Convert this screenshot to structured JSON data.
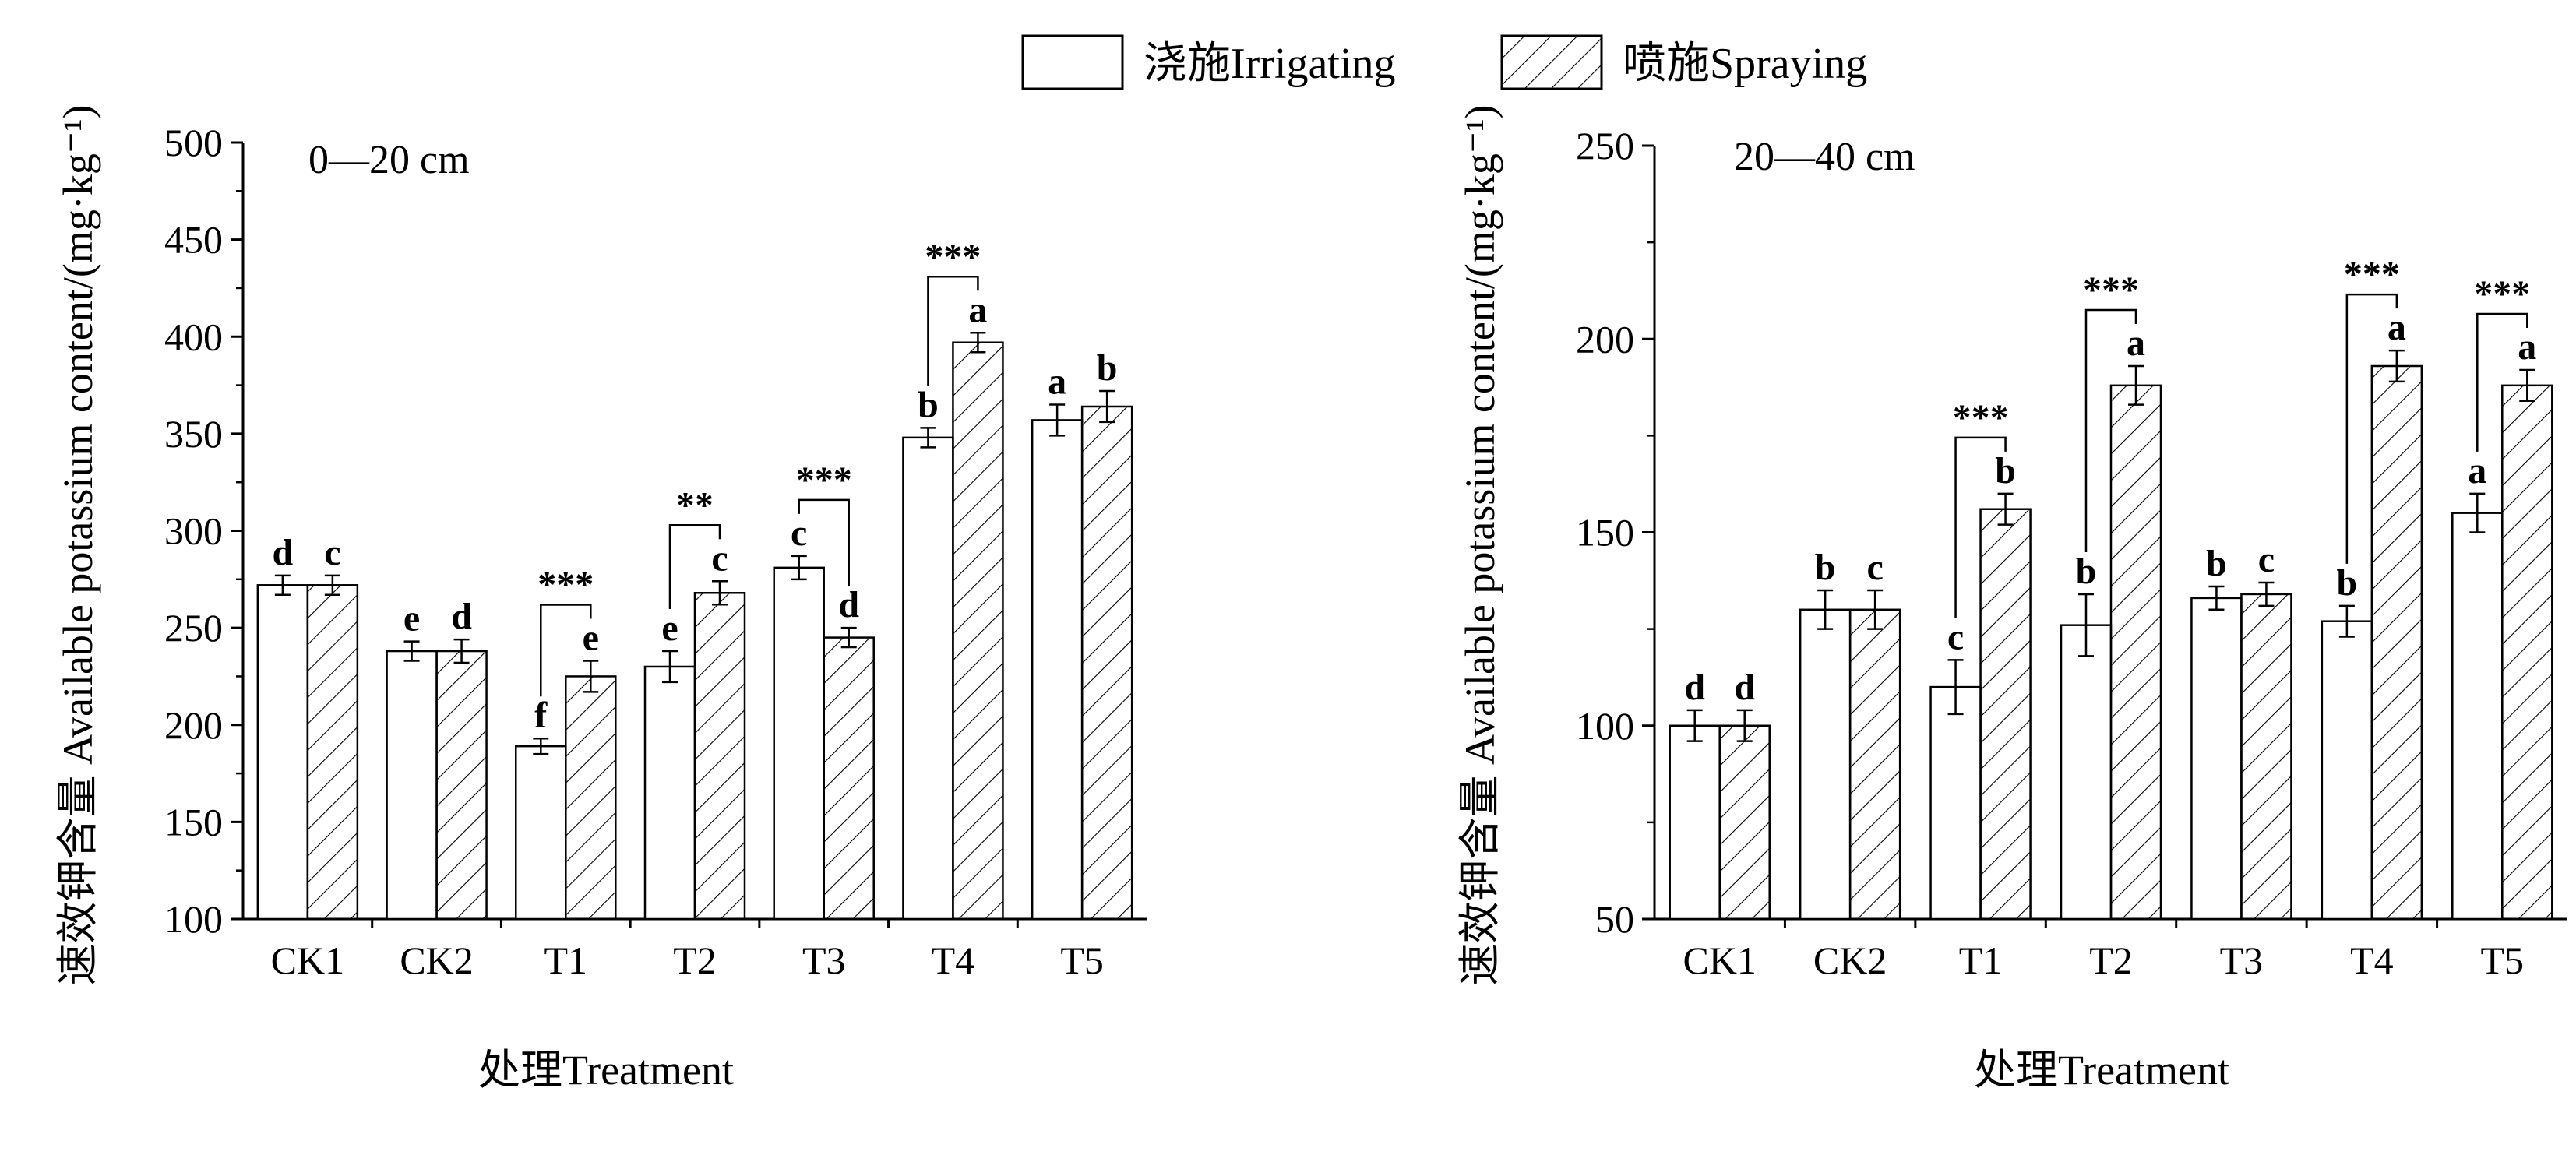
{
  "legend": {
    "items": [
      {
        "label": "浇施Irrigating",
        "pattern": "solid"
      },
      {
        "label": "喷施Spraying",
        "pattern": "hatch"
      }
    ]
  },
  "chart_data": [
    {
      "type": "bar",
      "title": "0—20 cm",
      "xlabel": "处理Treatment",
      "ylabel": "速效钾含量 Available potassium content/(mg·kg⁻¹)",
      "ylim": [
        100,
        500
      ],
      "yticks": [
        100,
        150,
        200,
        250,
        300,
        350,
        400,
        450,
        500
      ],
      "categories": [
        "CK1",
        "CK2",
        "T1",
        "T2",
        "T3",
        "T4",
        "T5"
      ],
      "series": [
        {
          "name": "浇施Irrigating",
          "values": [
            272,
            238,
            189,
            230,
            281,
            348,
            357
          ],
          "errors": [
            5,
            5,
            4,
            8,
            6,
            5,
            8
          ],
          "letters": [
            "d",
            "e",
            "f",
            "e",
            "c",
            "b",
            "a"
          ]
        },
        {
          "name": "喷施Spraying",
          "values": [
            272,
            238,
            225,
            268,
            245,
            397,
            364
          ],
          "errors": [
            5,
            6,
            8,
            6,
            5,
            5,
            8
          ],
          "letters": [
            "c",
            "d",
            "e",
            "c",
            "d",
            "a",
            "b"
          ]
        }
      ],
      "significance": [
        {
          "category": "T1",
          "label": "***"
        },
        {
          "category": "T2",
          "label": "**"
        },
        {
          "category": "T3",
          "label": "***"
        },
        {
          "category": "T4",
          "label": "***"
        }
      ]
    },
    {
      "type": "bar",
      "title": "20—40 cm",
      "xlabel": "处理Treatment",
      "ylabel": "速效钾含量 Available potassium content/(mg·kg⁻¹)",
      "ylim": [
        50,
        250
      ],
      "yticks": [
        50,
        100,
        150,
        200,
        250
      ],
      "categories": [
        "CK1",
        "CK2",
        "T1",
        "T2",
        "T3",
        "T4",
        "T5"
      ],
      "series": [
        {
          "name": "浇施Irrigating",
          "values": [
            100,
            130,
            110,
            126,
            133,
            127,
            155
          ],
          "errors": [
            4,
            5,
            7,
            8,
            3,
            4,
            5
          ],
          "letters": [
            "d",
            "b",
            "c",
            "b",
            "b",
            "b",
            "a"
          ]
        },
        {
          "name": "喷施Spraying",
          "values": [
            100,
            130,
            156,
            188,
            134,
            193,
            188
          ],
          "errors": [
            4,
            5,
            4,
            5,
            3,
            4,
            4
          ],
          "letters": [
            "d",
            "c",
            "b",
            "a",
            "c",
            "a",
            "a"
          ]
        }
      ],
      "significance": [
        {
          "category": "T1",
          "label": "***"
        },
        {
          "category": "T2",
          "label": "***"
        },
        {
          "category": "T4",
          "label": "***"
        },
        {
          "category": "T5",
          "label": "***"
        }
      ]
    }
  ]
}
